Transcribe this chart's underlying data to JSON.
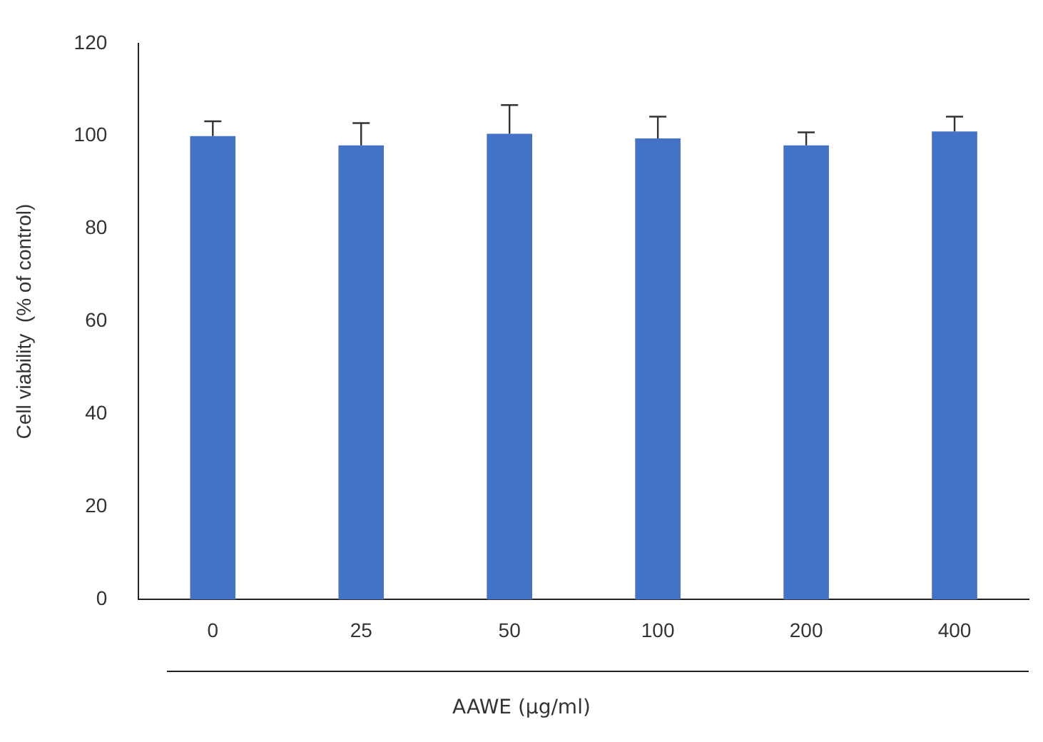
{
  "chart_data": {
    "type": "bar",
    "xlabel": "AAWE (μg/ml)",
    "ylabel": "Cell viability  (% of control)",
    "categories": [
      "0",
      "25",
      "50",
      "100",
      "200",
      "400"
    ],
    "values": [
      100,
      98,
      100.5,
      99.5,
      98,
      101
    ],
    "errors": [
      [
        100,
        103.2
      ],
      [
        98,
        102.8
      ],
      [
        100.5,
        106.7
      ],
      [
        99.5,
        104.2
      ],
      [
        98,
        100.8
      ],
      [
        101,
        104.2
      ]
    ],
    "color": "#4472c4",
    "ylim": [
      0,
      120
    ],
    "yticks": [
      0,
      20,
      40,
      60,
      80,
      100,
      120
    ],
    "grid": false,
    "legend": false
  }
}
